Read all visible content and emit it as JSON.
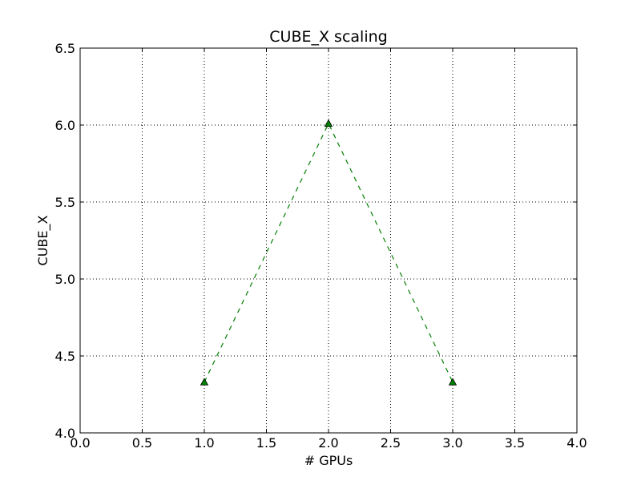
{
  "chart_data": {
    "type": "line",
    "title": "CUBE_X scaling",
    "xlabel": "# GPUs",
    "ylabel": "CUBE_X",
    "xlim": [
      0.0,
      4.0
    ],
    "ylim": [
      4.0,
      6.5
    ],
    "xticks": [
      "0.0",
      "0.5",
      "1.0",
      "1.5",
      "2.0",
      "2.5",
      "3.0",
      "3.5",
      "4.0"
    ],
    "yticks": [
      "4.0",
      "4.5",
      "5.0",
      "5.5",
      "6.0",
      "6.5"
    ],
    "grid": true,
    "series": [
      {
        "x": [
          1,
          2,
          3
        ],
        "y": [
          4.33,
          6.01,
          4.33
        ],
        "color": "#008000",
        "line_style": "dashed",
        "marker": "triangle-up"
      }
    ]
  }
}
